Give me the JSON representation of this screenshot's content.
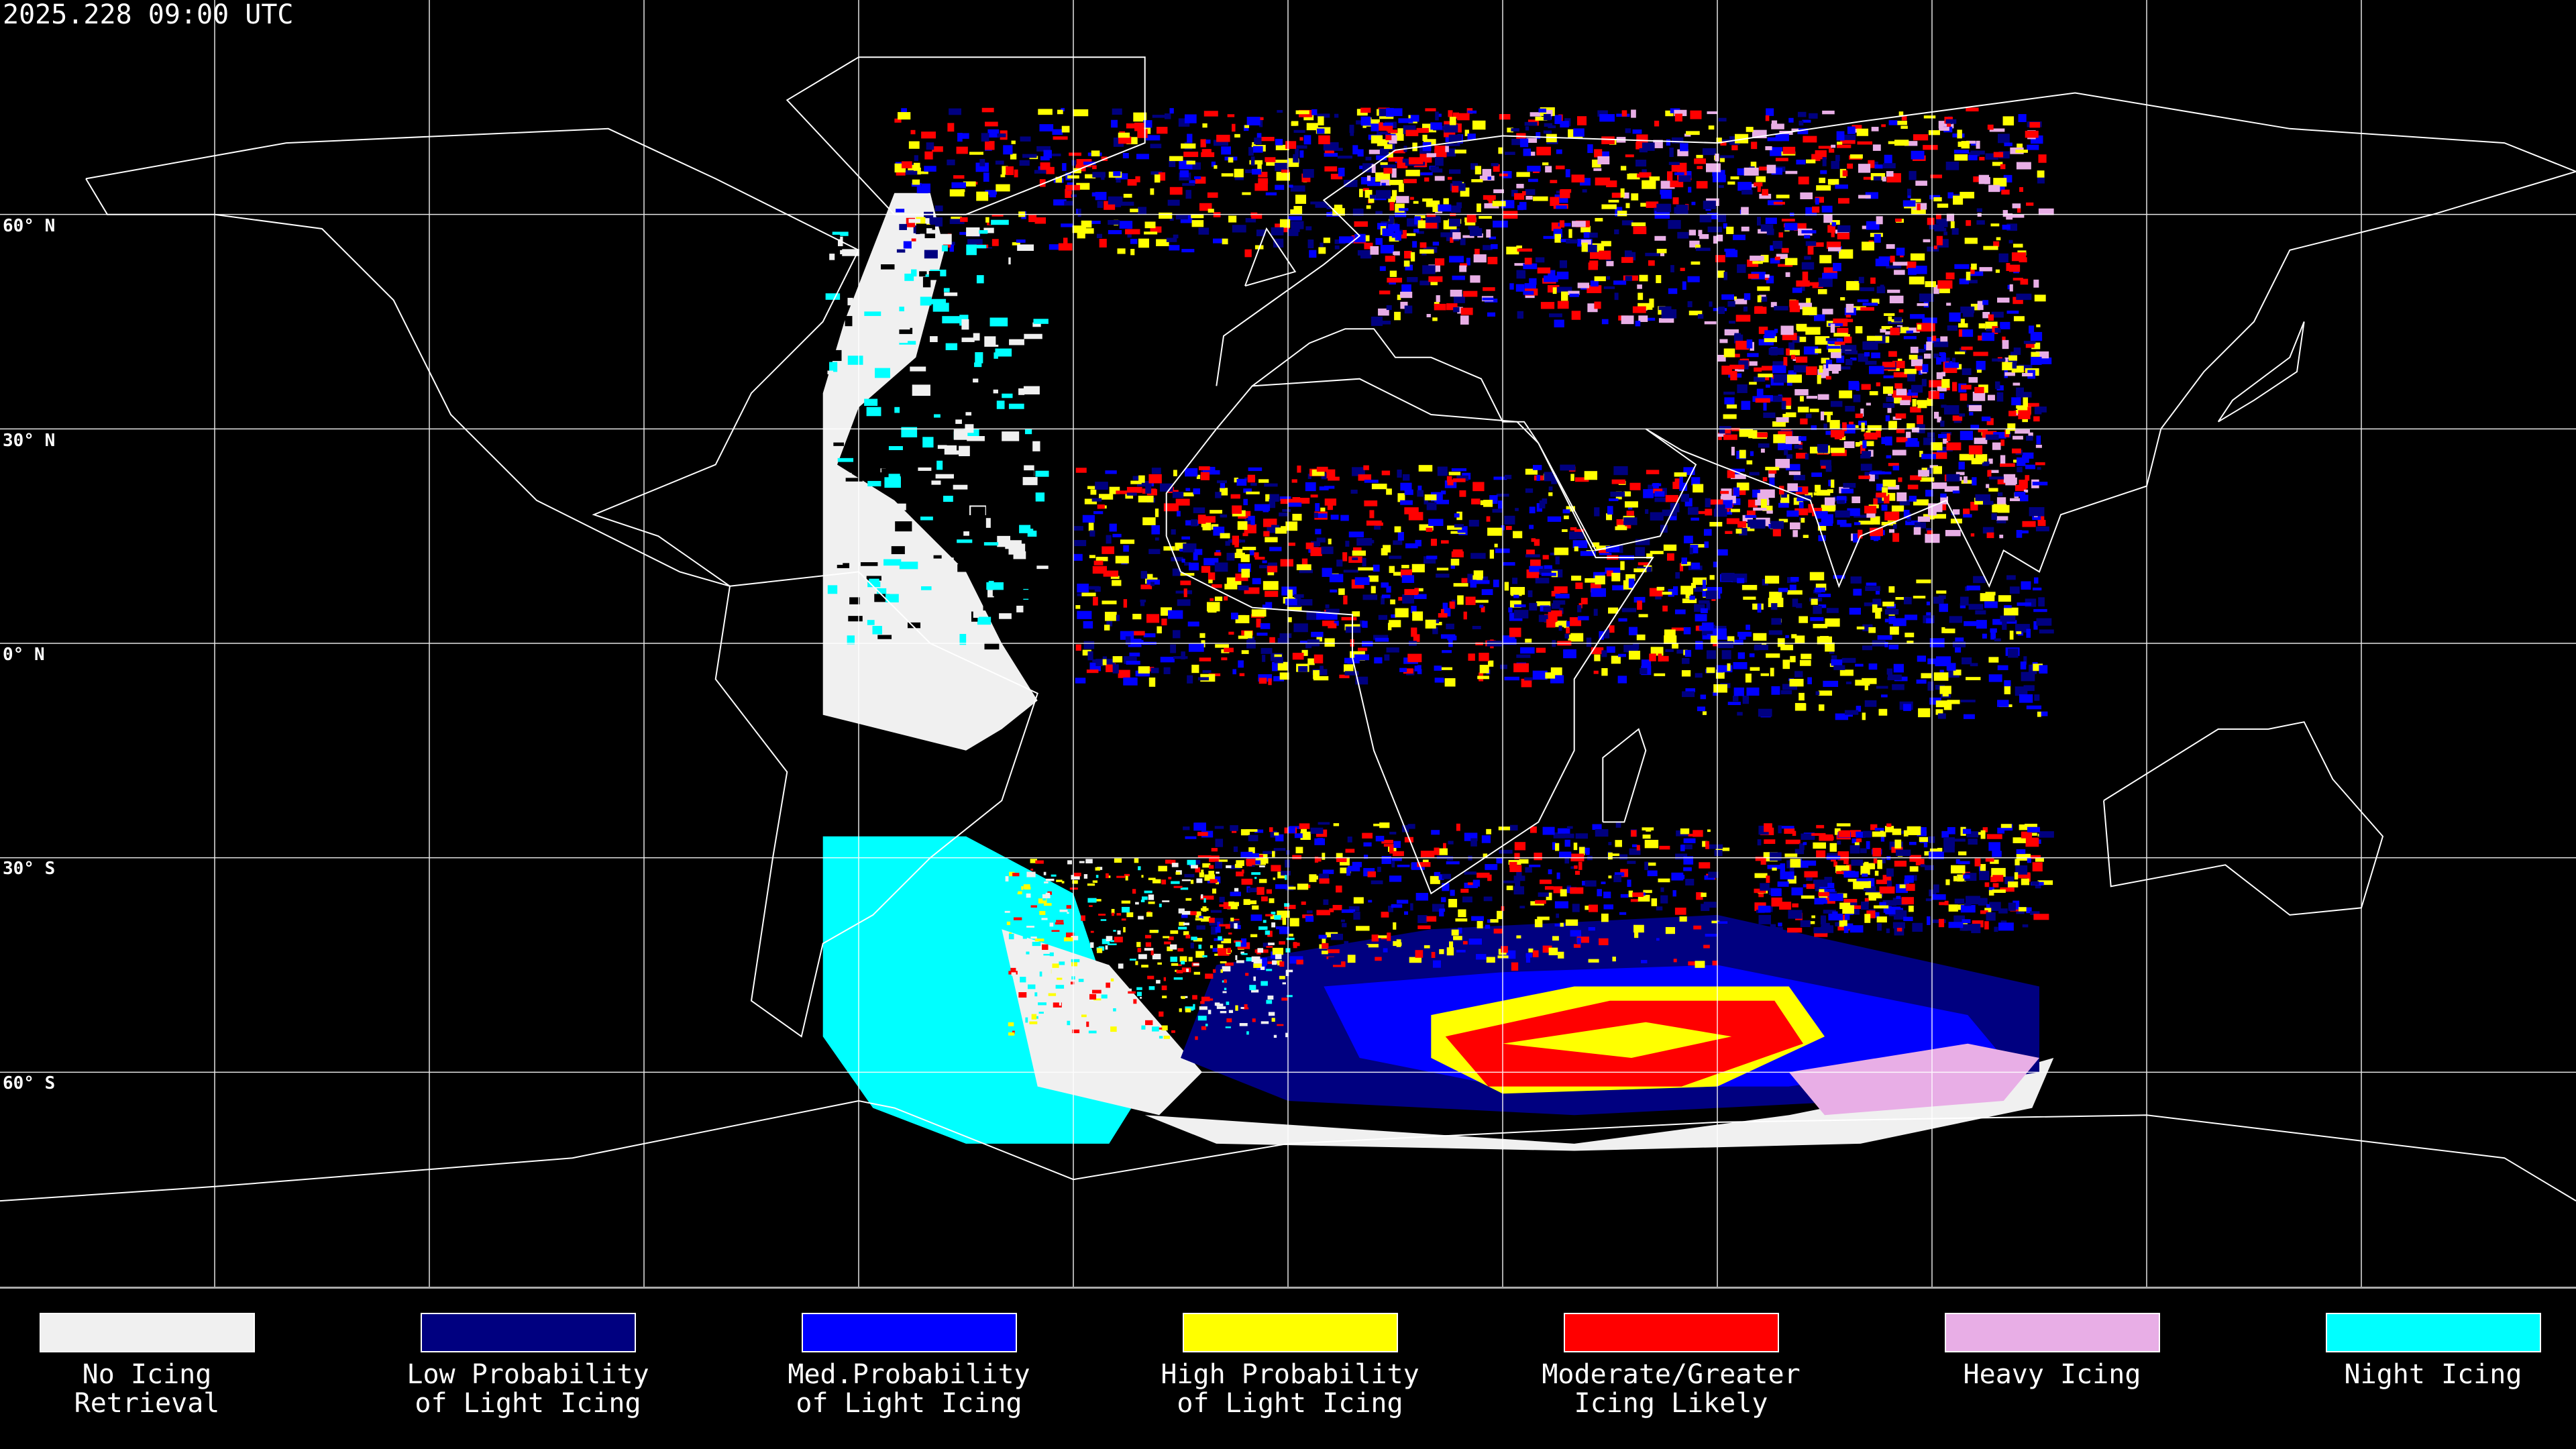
{
  "header": {
    "timestamp": "2025.228 09:00 UTC"
  },
  "map": {
    "projection": "equirectangular",
    "center_longitude": 0,
    "grid_spacing_deg": 30,
    "lat_labels": [
      "60° N",
      "30° N",
      "0° N",
      "30° S",
      "60° S"
    ],
    "background_color": "#000000",
    "coastline_color": "#ffffff",
    "grid_color": "#ffffff"
  },
  "legend": [
    {
      "line1": "No Icing",
      "line2": "Retrieval",
      "color": "#f0f0f0"
    },
    {
      "line1": "Low Probability",
      "line2": "of Light Icing",
      "color": "#000080"
    },
    {
      "line1": "Med.Probability",
      "line2": "of Light Icing",
      "color": "#0000ff"
    },
    {
      "line1": "High Probability",
      "line2": "of Light Icing",
      "color": "#ffff00"
    },
    {
      "line1": "Moderate/Greater",
      "line2": "Icing Likely",
      "color": "#ff0000"
    },
    {
      "line1": "Heavy Icing",
      "line2": "",
      "color": "#e8aee6"
    },
    {
      "line1": "Night Icing",
      "line2": "",
      "color": "#00ffff"
    }
  ]
}
